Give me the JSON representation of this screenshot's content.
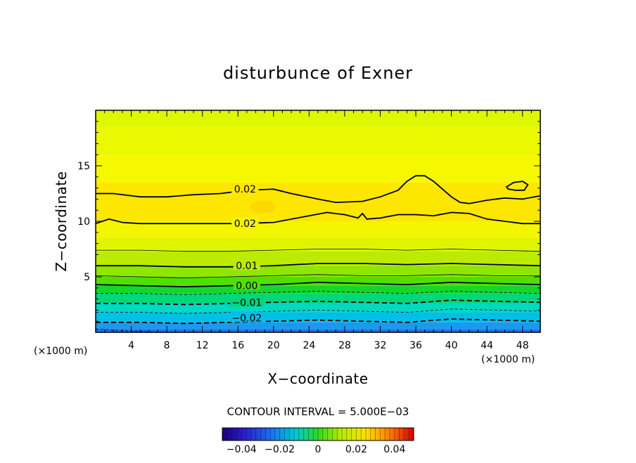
{
  "chart_data": {
    "type": "contour",
    "title": "disturbunce of Exner",
    "xlabel": "X−coordinate",
    "ylabel": "Z−coordinate",
    "x_unit": "(×1000 m)",
    "z_unit": "(×1000 m)",
    "xlim": [
      0,
      50
    ],
    "ylim": [
      0,
      20
    ],
    "x_ticks": [
      4,
      8,
      12,
      16,
      20,
      24,
      28,
      32,
      36,
      40,
      44,
      48
    ],
    "y_ticks": [
      5,
      10,
      15
    ],
    "contour_interval_text": "CONTOUR INTERVAL = 5.000E−03",
    "contour_levels": [
      -0.02,
      -0.01,
      0.0,
      0.01,
      0.02,
      0.02
    ],
    "contour_label_texts": [
      "−0.02",
      "−0.01",
      "0.00",
      "0.01",
      "0.02",
      "0.02"
    ],
    "contour_lines": [
      {
        "level": 0.02,
        "style": "solid",
        "weight": "thick",
        "x": [
          0,
          2,
          5,
          8,
          11,
          14,
          17,
          20,
          22,
          25,
          27,
          30,
          32,
          34,
          35,
          36,
          37,
          38,
          39,
          40,
          41,
          42,
          44,
          46,
          48,
          50
        ],
        "z": [
          12.5,
          12.5,
          12.2,
          12.2,
          12.4,
          12.5,
          12.8,
          12.9,
          12.5,
          12.0,
          11.7,
          11.8,
          12.2,
          12.8,
          13.6,
          14.1,
          14.1,
          13.6,
          12.9,
          12.2,
          11.7,
          11.6,
          11.9,
          12.1,
          12.0,
          12.3
        ]
      },
      {
        "level": 0.02,
        "style": "solid",
        "weight": "thick",
        "x": [
          0,
          1.5,
          3,
          5,
          8,
          12,
          16,
          20,
          24,
          26,
          28,
          29.5,
          30,
          30.5,
          32,
          34,
          36,
          38,
          40,
          42,
          44,
          46,
          48,
          50
        ],
        "z": [
          9.8,
          10.2,
          9.9,
          9.8,
          9.8,
          9.8,
          9.8,
          9.9,
          10.5,
          10.8,
          10.6,
          10.3,
          10.7,
          10.2,
          10.3,
          10.6,
          10.6,
          10.5,
          10.8,
          10.7,
          10.2,
          10.0,
          9.8,
          9.8
        ]
      },
      {
        "level": 0.015,
        "style": "solid",
        "weight": "thin",
        "x": [
          0,
          5,
          10,
          15,
          20,
          25,
          30,
          35,
          40,
          45,
          50
        ],
        "z": [
          7.4,
          7.4,
          7.3,
          7.3,
          7.4,
          7.5,
          7.5,
          7.4,
          7.5,
          7.4,
          7.3
        ]
      },
      {
        "level": 0.01,
        "style": "solid",
        "weight": "thick",
        "x": [
          0,
          5,
          10,
          15,
          20,
          25,
          30,
          35,
          40,
          45,
          50
        ],
        "z": [
          6.0,
          6.0,
          5.9,
          5.9,
          6.0,
          6.2,
          6.2,
          6.1,
          6.2,
          6.1,
          6.0
        ]
      },
      {
        "level": 0.005,
        "style": "solid",
        "weight": "thin",
        "x": [
          0,
          5,
          10,
          15,
          20,
          25,
          30,
          35,
          40,
          45,
          50
        ],
        "z": [
          5.1,
          5.0,
          4.9,
          5.0,
          5.1,
          5.2,
          5.1,
          5.1,
          5.2,
          5.1,
          5.1
        ]
      },
      {
        "level": 0.0,
        "style": "solid",
        "weight": "thick",
        "x": [
          0,
          5,
          10,
          15,
          20,
          25,
          30,
          35,
          40,
          45,
          50
        ],
        "z": [
          4.3,
          4.2,
          4.1,
          4.2,
          4.3,
          4.5,
          4.4,
          4.3,
          4.5,
          4.4,
          4.3
        ]
      },
      {
        "level": -0.005,
        "style": "dashed",
        "weight": "thin",
        "x": [
          0,
          5,
          10,
          15,
          20,
          25,
          30,
          35,
          40,
          45,
          50
        ],
        "z": [
          3.5,
          3.5,
          3.4,
          3.5,
          3.6,
          3.7,
          3.6,
          3.5,
          3.7,
          3.6,
          3.5
        ]
      },
      {
        "level": -0.01,
        "style": "dashed",
        "weight": "thick",
        "x": [
          0,
          5,
          10,
          15,
          20,
          25,
          30,
          35,
          40,
          45,
          50
        ],
        "z": [
          2.6,
          2.6,
          2.5,
          2.6,
          2.7,
          2.8,
          2.7,
          2.6,
          2.9,
          2.8,
          2.7
        ]
      },
      {
        "level": -0.015,
        "style": "dashed",
        "weight": "thin",
        "x": [
          0,
          5,
          10,
          15,
          20,
          25,
          30,
          35,
          40,
          45,
          50
        ],
        "z": [
          1.8,
          1.8,
          1.7,
          1.8,
          1.9,
          2.0,
          1.9,
          1.8,
          2.1,
          2.0,
          1.9
        ]
      },
      {
        "level": -0.02,
        "style": "dashed",
        "weight": "thick",
        "x": [
          0,
          5,
          10,
          15,
          20,
          25,
          30,
          35,
          40,
          45,
          50
        ],
        "z": [
          0.9,
          0.9,
          0.8,
          0.9,
          1.0,
          1.1,
          1.0,
          0.9,
          1.2,
          1.1,
          1.0
        ]
      },
      {
        "level": -0.025,
        "style": "dashed",
        "weight": "thin",
        "x": [
          0,
          2,
          4,
          6,
          8
        ],
        "z": [
          0.3,
          0.2,
          0.1,
          0.05,
          0.0
        ]
      }
    ],
    "closed_contours": [
      {
        "level": 0.02,
        "x": [
          46.2,
          47,
          48,
          48.6,
          48.2,
          47.2,
          46.4,
          46.2
        ],
        "z": [
          13.1,
          13.5,
          13.6,
          13.3,
          12.8,
          12.8,
          12.9,
          13.1
        ]
      }
    ],
    "contour_label_positions": [
      {
        "text_index": 0,
        "x": 17.0,
        "z": 1.3
      },
      {
        "text_index": 1,
        "x": 17.0,
        "z": 2.7
      },
      {
        "text_index": 2,
        "x": 17.0,
        "z": 4.2
      },
      {
        "text_index": 3,
        "x": 17.0,
        "z": 6.0
      },
      {
        "text_index": 4,
        "x": 16.8,
        "z": 9.8
      },
      {
        "text_index": 5,
        "x": 16.8,
        "z": 12.9
      }
    ],
    "colorbar": {
      "range": [
        -0.05,
        0.05
      ],
      "ticks": [
        -0.04,
        -0.02,
        0,
        0.02,
        0.04
      ],
      "tick_labels": [
        "−0.04",
        "−0.02",
        "0",
        "0.02",
        "0.04"
      ]
    },
    "fill_bands": [
      {
        "z0": 18.5,
        "z1": 20.0,
        "color": "#ddf800"
      },
      {
        "z0": 16.0,
        "z1": 18.5,
        "color": "#eaf800"
      },
      {
        "z0": 13.5,
        "z1": 16.0,
        "color": "#f6f800"
      },
      {
        "z0": 10.0,
        "z1": 13.5,
        "color": "#fde600"
      },
      {
        "z0": 8.5,
        "z1": 10.0,
        "color": "#f4f500"
      },
      {
        "z0": 7.3,
        "z1": 8.5,
        "color": "#dff500"
      },
      {
        "z0": 6.0,
        "z1": 7.3,
        "color": "#bbec00"
      },
      {
        "z0": 5.0,
        "z1": 6.0,
        "color": "#8fe600"
      },
      {
        "z0": 4.2,
        "z1": 5.0,
        "color": "#4fe000"
      },
      {
        "z0": 3.5,
        "z1": 4.2,
        "color": "#16d62a"
      },
      {
        "z0": 2.6,
        "z1": 3.5,
        "color": "#00d67a"
      },
      {
        "z0": 1.8,
        "z1": 2.6,
        "color": "#00d8c0"
      },
      {
        "z0": 0.9,
        "z1": 1.8,
        "color": "#00c0e6"
      },
      {
        "z0": 0.3,
        "z1": 0.9,
        "color": "#1a9aef"
      },
      {
        "z0": 0.0,
        "z1": 0.3,
        "color": "#2a6ef0"
      }
    ]
  }
}
